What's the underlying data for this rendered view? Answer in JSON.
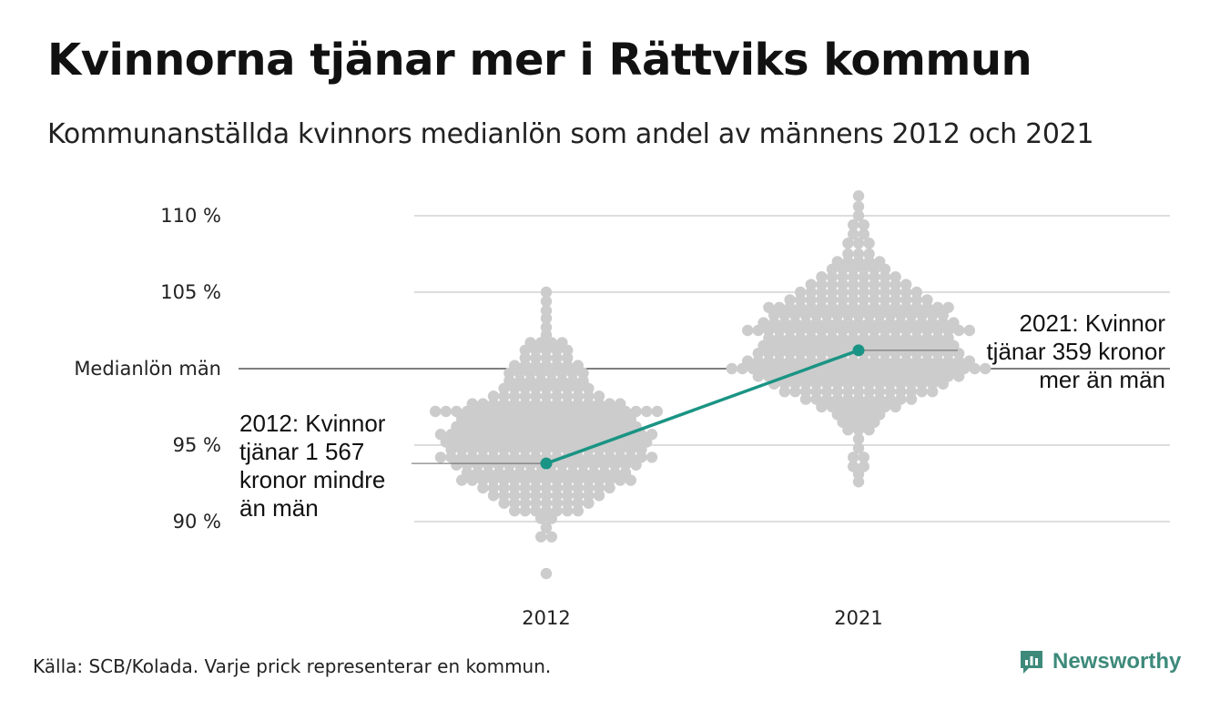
{
  "title": "Kvinnorna tjänar mer i Rättviks kommun",
  "subtitle": "Kommunanställda kvinnors medianlön som andel av männens 2012 och 2021",
  "source": "Källa: SCB/Kolada. Varje prick representerar en kommun.",
  "brand": "Newsworthy",
  "colors": {
    "dots": "#cccccc",
    "highlight": "#1a9484",
    "grid": "#dddddd",
    "reference": "#333333"
  },
  "chart_data": {
    "type": "scatter",
    "categories": [
      "2012",
      "2021"
    ],
    "y_ticks": [
      {
        "value": 90,
        "label": "90 %"
      },
      {
        "value": 95,
        "label": "95 %"
      },
      {
        "value": 100,
        "label": "Medianlön män"
      },
      {
        "value": 105,
        "label": "105 %"
      },
      {
        "value": 110,
        "label": "110 %"
      }
    ],
    "ylim": [
      86,
      111.5
    ],
    "reference_line": {
      "value": 100,
      "label": "Medianlön män"
    },
    "highlight": {
      "name": "Rättvik",
      "values": [
        {
          "x": "2012",
          "y": 93.8
        },
        {
          "x": "2021",
          "y": 101.2
        }
      ]
    },
    "annotations": [
      {
        "x": "2012",
        "lines": [
          "2012: Kvinnor",
          "tjänar 1 567",
          "kronor mindre",
          "än män"
        ]
      },
      {
        "x": "2021",
        "lines": [
          "2021: Kvinnor",
          "tjänar 359 kronor",
          "mer än män"
        ]
      }
    ],
    "distribution": [
      {
        "x": "2012",
        "bins": [
          {
            "y": 86.6,
            "count": 1
          },
          {
            "y": 89.0,
            "count": 2
          },
          {
            "y": 89.6,
            "count": 1
          },
          {
            "y": 90.2,
            "count": 2
          },
          {
            "y": 90.7,
            "count": 7
          },
          {
            "y": 91.2,
            "count": 9
          },
          {
            "y": 91.7,
            "count": 11
          },
          {
            "y": 92.2,
            "count": 13
          },
          {
            "y": 92.7,
            "count": 17
          },
          {
            "y": 93.2,
            "count": 16
          },
          {
            "y": 93.7,
            "count": 18
          },
          {
            "y": 94.2,
            "count": 21
          },
          {
            "y": 94.7,
            "count": 19
          },
          {
            "y": 95.2,
            "count": 20
          },
          {
            "y": 95.7,
            "count": 21
          },
          {
            "y": 96.2,
            "count": 18
          },
          {
            "y": 96.7,
            "count": 17
          },
          {
            "y": 97.2,
            "count": 22
          },
          {
            "y": 97.7,
            "count": 15
          },
          {
            "y": 98.2,
            "count": 11
          },
          {
            "y": 98.7,
            "count": 9
          },
          {
            "y": 99.2,
            "count": 8
          },
          {
            "y": 99.7,
            "count": 8
          },
          {
            "y": 100.2,
            "count": 7
          },
          {
            "y": 100.7,
            "count": 5
          },
          {
            "y": 101.2,
            "count": 5
          },
          {
            "y": 101.7,
            "count": 4
          },
          {
            "y": 102.2,
            "count": 1
          },
          {
            "y": 102.7,
            "count": 1
          },
          {
            "y": 103.3,
            "count": 1
          },
          {
            "y": 103.8,
            "count": 1
          },
          {
            "y": 104.4,
            "count": 1
          },
          {
            "y": 105.0,
            "count": 1
          }
        ]
      },
      {
        "x": "2021",
        "bins": [
          {
            "y": 92.6,
            "count": 1
          },
          {
            "y": 93.1,
            "count": 1
          },
          {
            "y": 93.6,
            "count": 2
          },
          {
            "y": 94.2,
            "count": 2
          },
          {
            "y": 94.8,
            "count": 1
          },
          {
            "y": 95.4,
            "count": 1
          },
          {
            "y": 96.0,
            "count": 3
          },
          {
            "y": 96.5,
            "count": 4
          },
          {
            "y": 97.0,
            "count": 5
          },
          {
            "y": 97.5,
            "count": 8
          },
          {
            "y": 98.0,
            "count": 11
          },
          {
            "y": 98.5,
            "count": 15
          },
          {
            "y": 99.0,
            "count": 17
          },
          {
            "y": 99.5,
            "count": 20
          },
          {
            "y": 100.0,
            "count": 25
          },
          {
            "y": 100.5,
            "count": 22
          },
          {
            "y": 101.0,
            "count": 20
          },
          {
            "y": 101.5,
            "count": 19
          },
          {
            "y": 102.0,
            "count": 18
          },
          {
            "y": 102.5,
            "count": 22
          },
          {
            "y": 103.0,
            "count": 19
          },
          {
            "y": 103.5,
            "count": 17
          },
          {
            "y": 104.0,
            "count": 18
          },
          {
            "y": 104.5,
            "count": 14
          },
          {
            "y": 105.0,
            "count": 12
          },
          {
            "y": 105.5,
            "count": 10
          },
          {
            "y": 106.0,
            "count": 8
          },
          {
            "y": 106.5,
            "count": 6
          },
          {
            "y": 107.0,
            "count": 5
          },
          {
            "y": 107.5,
            "count": 3
          },
          {
            "y": 108.2,
            "count": 3
          },
          {
            "y": 108.8,
            "count": 2
          },
          {
            "y": 109.4,
            "count": 2
          },
          {
            "y": 110.0,
            "count": 1
          },
          {
            "y": 110.6,
            "count": 1
          },
          {
            "y": 111.3,
            "count": 1
          }
        ]
      }
    ]
  }
}
